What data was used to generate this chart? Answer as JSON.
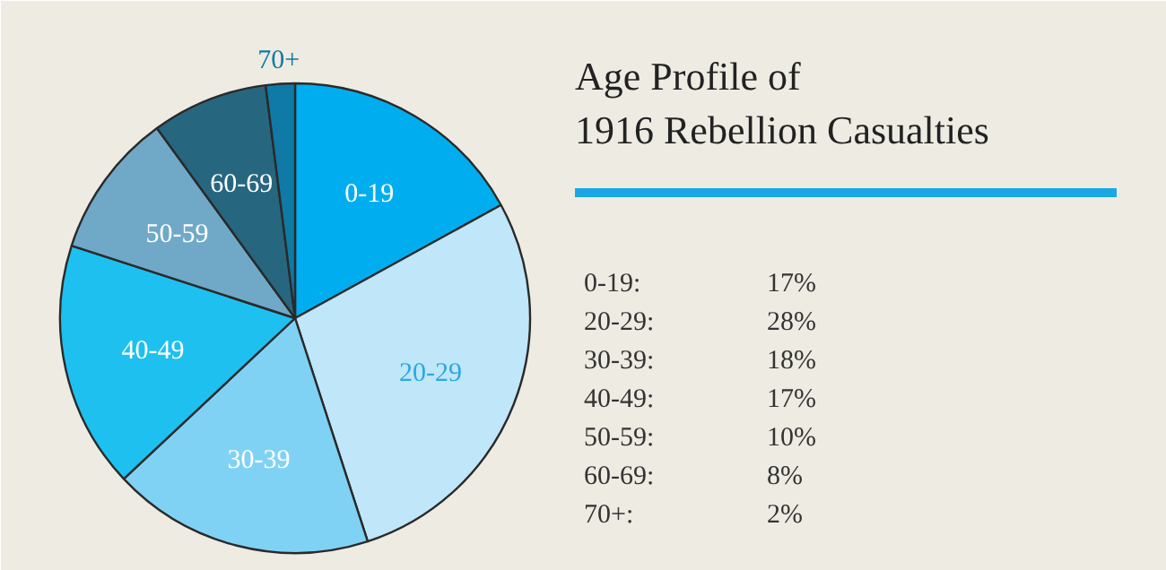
{
  "chart_data": {
    "type": "pie",
    "title": "Age Profile of\n1916 Rebellion Casualties",
    "categories": [
      "0-19",
      "20-29",
      "30-39",
      "40-49",
      "50-59",
      "60-69",
      "70+"
    ],
    "values": [
      17,
      28,
      18,
      17,
      10,
      8,
      2
    ],
    "colors": [
      "#00aeef",
      "#bfe6f9",
      "#80d2f5",
      "#1ec0f0",
      "#70a9c7",
      "#27667f",
      "#0e7aa5"
    ],
    "annotations": [
      "0-19:",
      "17%",
      "20-29:",
      "28%",
      "30-39:",
      "18%",
      "40-49:",
      "17%",
      "50-59:",
      "10%",
      "60-69:",
      "8%",
      "70+:",
      "2%"
    ]
  }
}
